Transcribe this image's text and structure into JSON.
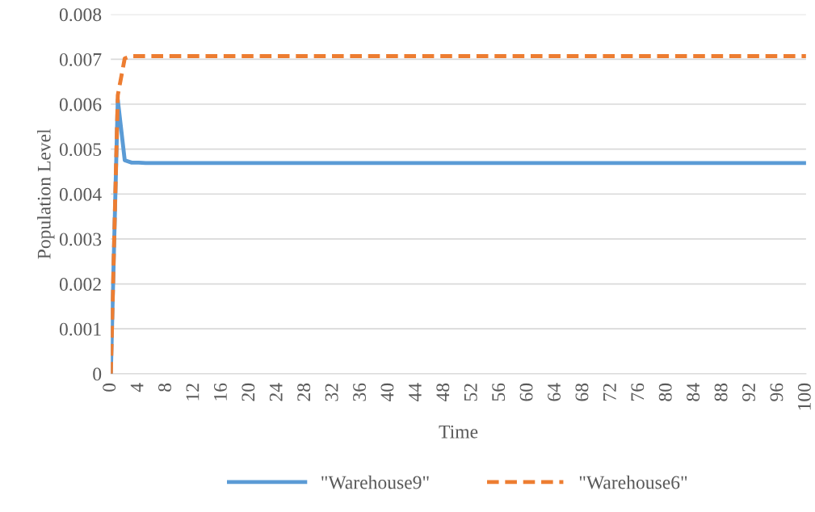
{
  "chart_data": {
    "type": "line",
    "xlabel": "Time",
    "ylabel": "Population Level",
    "xlim": [
      0,
      100
    ],
    "xticks": [
      0,
      4,
      8,
      12,
      16,
      20,
      24,
      28,
      32,
      36,
      40,
      44,
      48,
      52,
      56,
      60,
      64,
      68,
      72,
      76,
      80,
      84,
      88,
      92,
      96,
      100
    ],
    "ylim": [
      0,
      0.008
    ],
    "yticks": [
      0,
      0.001,
      0.002,
      0.003,
      0.004,
      0.005,
      0.006,
      0.007,
      0.008
    ],
    "grid": "y",
    "legend": "bottom",
    "series": [
      {
        "name": "\"Warehouse9\"",
        "color": "#5b9bd5",
        "line_style": "solid",
        "x": [
          0,
          1,
          2,
          3,
          4,
          5,
          100
        ],
        "values": [
          0,
          0.0061,
          0.00475,
          0.0047,
          0.0047,
          0.00469,
          0.00469
        ]
      },
      {
        "name": "\"Warehouse6\"",
        "color": "#ed7d31",
        "line_style": "dashed",
        "x": [
          0,
          1,
          2,
          3,
          100
        ],
        "values": [
          0,
          0.0062,
          0.00702,
          0.00707,
          0.00707
        ]
      }
    ]
  }
}
